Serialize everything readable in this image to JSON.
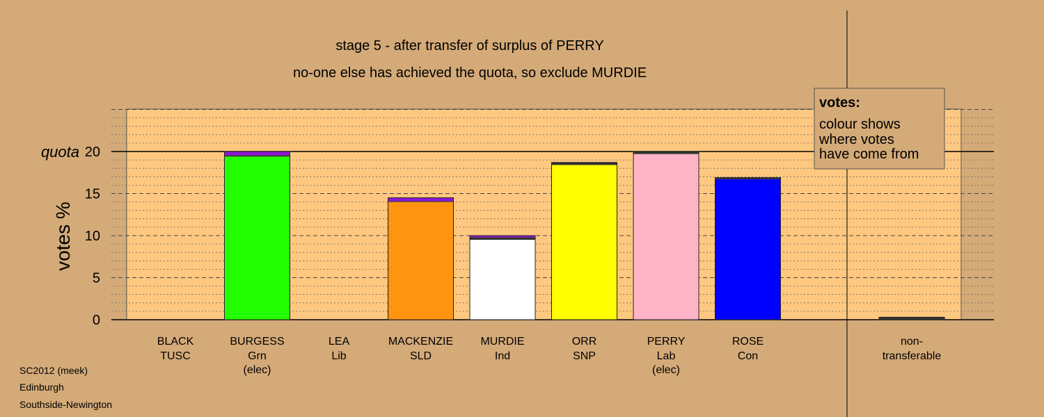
{
  "chart_data": {
    "type": "bar",
    "title": "stage 5 - after transfer of surplus of PERRY",
    "subtitle": "no-one else has achieved the quota, so exclude MURDIE",
    "ylabel": "votes %",
    "ylim": [
      0,
      25
    ],
    "yticks": [
      "0",
      "5",
      "10",
      "15",
      "20"
    ],
    "quota_label": "quota",
    "quota_value": 20,
    "grid": true,
    "legend": {
      "title": "votes:",
      "lines": [
        "colour shows",
        "where votes",
        "have come from"
      ],
      "placement": "top-right"
    },
    "candidates": [
      {
        "name": "BLACK",
        "party": "TUSC",
        "status": "",
        "values": [
          {
            "v": 0,
            "color": "#000000"
          }
        ]
      },
      {
        "name": "BURGESS",
        "party": "Grn",
        "status": "(elec)",
        "values": [
          {
            "v": 19.4,
            "color": "#22ff00"
          },
          {
            "v": 0.15,
            "color": "#333333"
          },
          {
            "v": 0.45,
            "color": "#8a17d6"
          }
        ]
      },
      {
        "name": "LEA",
        "party": "Lib",
        "status": "",
        "values": [
          {
            "v": 0,
            "color": "#000000"
          }
        ]
      },
      {
        "name": "MACKENZIE",
        "party": "SLD",
        "status": "",
        "values": [
          {
            "v": 14.0,
            "color": "#ff9410"
          },
          {
            "v": 0.1,
            "color": "#333333"
          },
          {
            "v": 0.4,
            "color": "#8a17d6"
          }
        ]
      },
      {
        "name": "MURDIE",
        "party": "Ind",
        "status": "",
        "values": [
          {
            "v": 9.5,
            "color": "#ffffff"
          },
          {
            "v": 0.3,
            "color": "#333333"
          },
          {
            "v": 0.2,
            "color": "#8a17d6"
          }
        ]
      },
      {
        "name": "ORR",
        "party": "SNP",
        "status": "",
        "values": [
          {
            "v": 18.4,
            "color": "#ffff00"
          },
          {
            "v": 0.3,
            "color": "#333333"
          }
        ]
      },
      {
        "name": "PERRY",
        "party": "Lab",
        "status": "(elec)",
        "values": [
          {
            "v": 19.7,
            "color": "#ffb3c6"
          },
          {
            "v": 0.3,
            "color": "#333333"
          }
        ]
      },
      {
        "name": "ROSE",
        "party": "Con",
        "status": "",
        "values": [
          {
            "v": 16.7,
            "color": "#0000ff"
          },
          {
            "v": 0.2,
            "color": "#333333"
          }
        ]
      }
    ],
    "nontransferable": {
      "label1": "non-",
      "label2": "transferable",
      "value": 0.3,
      "color": "#333333"
    }
  },
  "footer": {
    "line1": "SC2012 (meek)",
    "line2": "Edinburgh",
    "line3": "Southside-Newington"
  },
  "colors": {
    "background": "#d4aa78",
    "plot_bg": "#ffc880"
  }
}
